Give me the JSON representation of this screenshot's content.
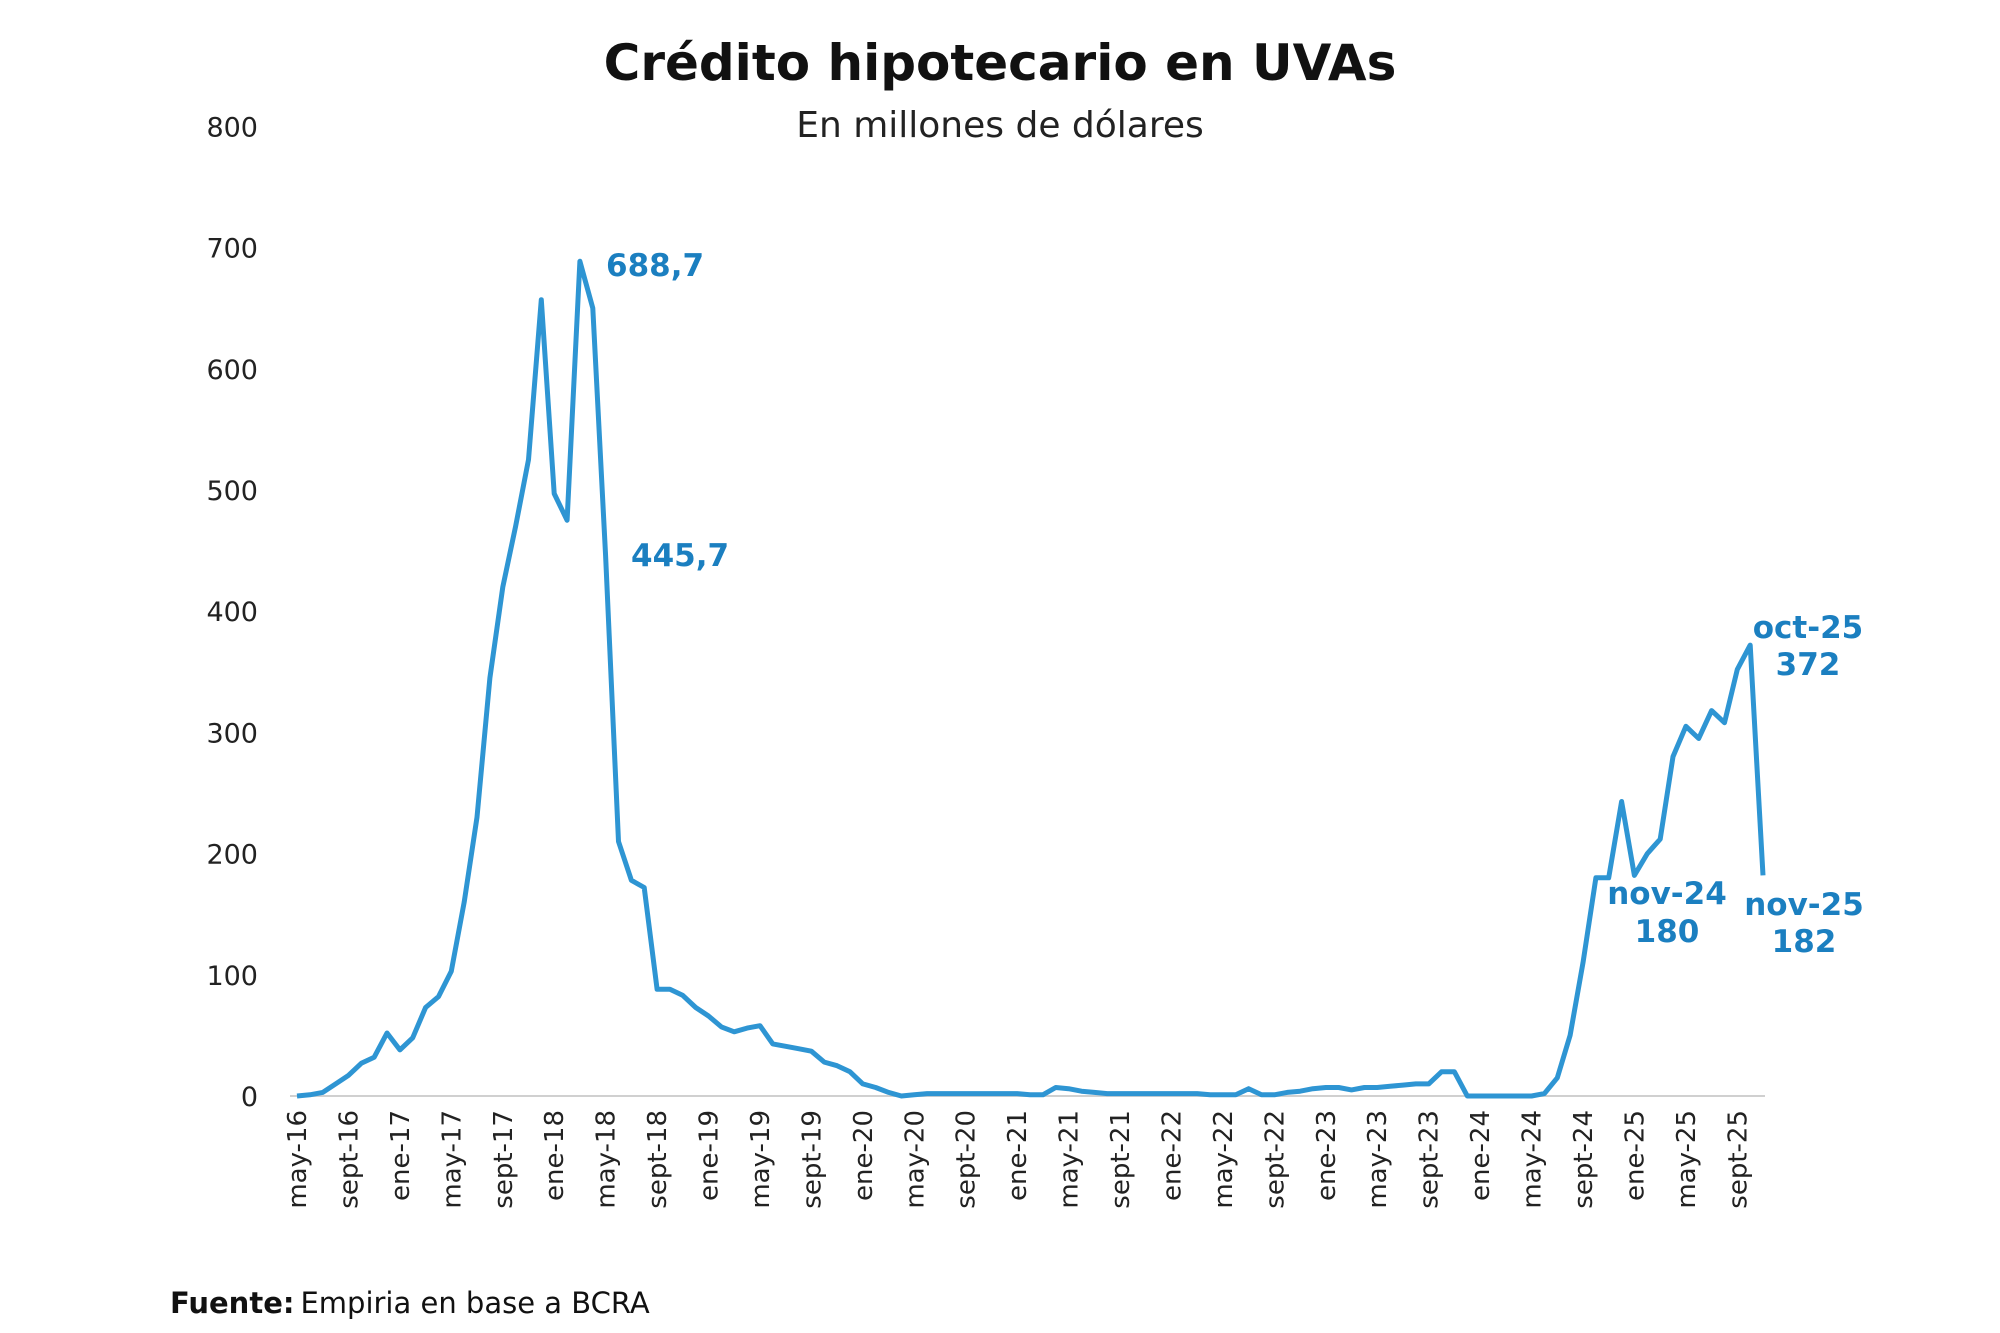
{
  "chart_data": {
    "type": "line",
    "title": "Crédito hipotecario en UVAs",
    "subtitle": "En millones de dólares",
    "xlabel": "",
    "ylabel": "",
    "ylim": [
      0,
      800
    ],
    "yticks": [
      "0",
      "100",
      "200",
      "300",
      "400",
      "500",
      "600",
      "700",
      "800"
    ],
    "x_start": "may-16",
    "x_end": "nov-25",
    "frequency": "monthly",
    "xtick_labels": [
      "may-16",
      "sept-16",
      "ene-17",
      "may-17",
      "sept-17",
      "ene-18",
      "may-18",
      "sept-18",
      "ene-19",
      "may-19",
      "sept-19",
      "ene-20",
      "may-20",
      "sept-20",
      "ene-21",
      "may-21",
      "sept-21",
      "ene-22",
      "may-22",
      "sept-22",
      "ene-23",
      "may-23",
      "sept-23",
      "ene-24",
      "may-24",
      "sept-24",
      "ene-25",
      "may-25",
      "sept-25"
    ],
    "series": [
      {
        "name": "Crédito hipotecario en UVAs",
        "color": "#2e95d3",
        "values": [
          0,
          1,
          3,
          10,
          17,
          27,
          32,
          52,
          38,
          48,
          73,
          82,
          103,
          160,
          230,
          345,
          420,
          470,
          525,
          657,
          497,
          475,
          688.7,
          650,
          445.7,
          210,
          178,
          172,
          88,
          88,
          83,
          73,
          66,
          57,
          53,
          56,
          58,
          43,
          41,
          39,
          37,
          28,
          25,
          20,
          10,
          7,
          3,
          0,
          1,
          2,
          2,
          2,
          2,
          2,
          2,
          2,
          2,
          1,
          1,
          7,
          6,
          4,
          3,
          2,
          2,
          2,
          2,
          2,
          2,
          2,
          2,
          1,
          1,
          1,
          6,
          1,
          1,
          3,
          4,
          6,
          7,
          7,
          5,
          7,
          7,
          8,
          9,
          10,
          10,
          20,
          20,
          0,
          0,
          0,
          0,
          0,
          0,
          2,
          15,
          50,
          110,
          180,
          180,
          243,
          182,
          200,
          212,
          280,
          305,
          295,
          318,
          308,
          352,
          372,
          182
        ]
      }
    ],
    "annotations": [
      {
        "lines": [
          "688,7"
        ]
      },
      {
        "lines": [
          "445,7"
        ]
      },
      {
        "lines": [
          "oct-25",
          "372"
        ]
      },
      {
        "lines": [
          "nov-24",
          "180"
        ]
      },
      {
        "lines": [
          "nov-25",
          "182"
        ]
      }
    ],
    "grid": false,
    "legend": "none"
  },
  "source": {
    "label": "Fuente:",
    "text": "Empiria en base a BCRA"
  }
}
